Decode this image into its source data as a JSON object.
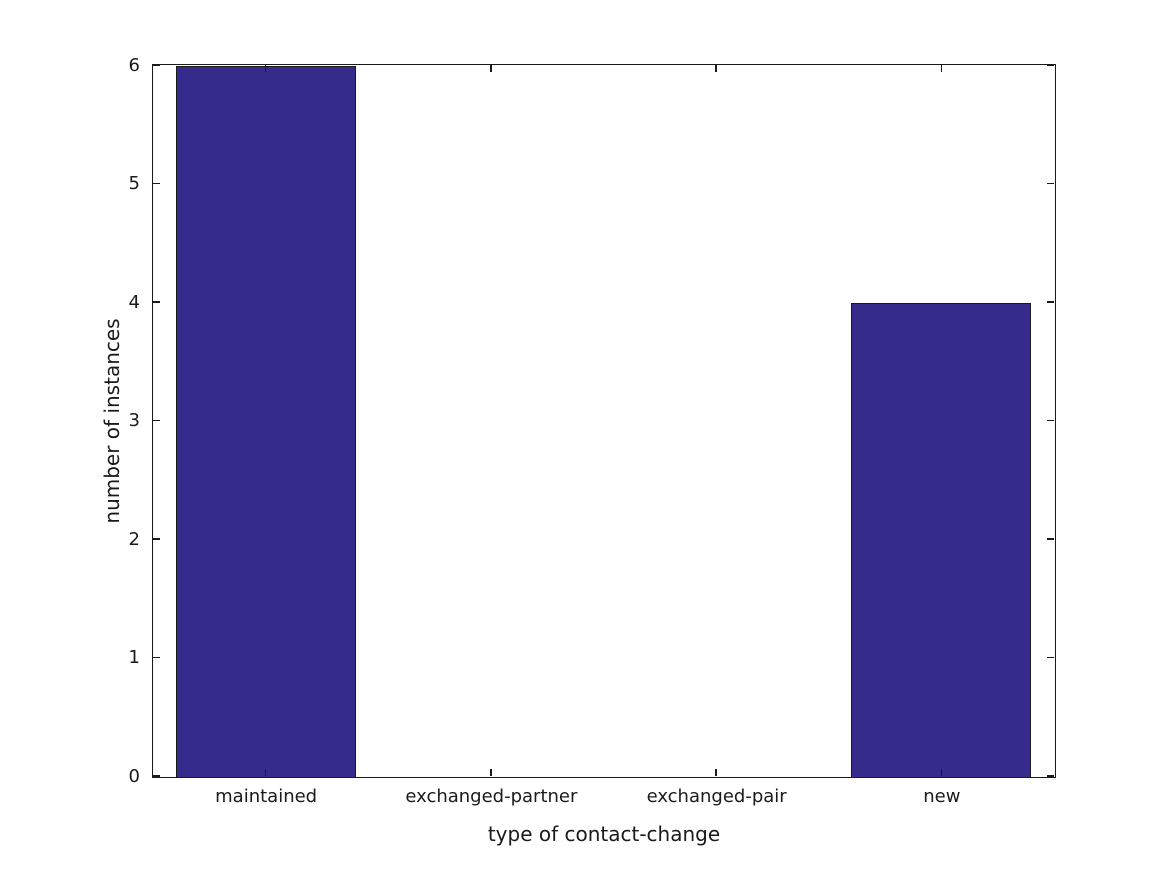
{
  "figure": {
    "background_color": "#ffffff",
    "text_color": "#1a1a1a",
    "axis_color": "#1a1a1a"
  },
  "chart_data": {
    "type": "bar",
    "title": "",
    "categories": [
      "maintained",
      "exchanged-partner",
      "exchanged-pair",
      "new"
    ],
    "values": [
      6,
      0,
      0,
      4
    ],
    "xlabel": "type of contact-change",
    "ylabel": "number of instances",
    "ylim": [
      0,
      6
    ],
    "yticks": [
      0,
      1,
      2,
      3,
      4,
      5,
      6
    ],
    "ytick_labels": [
      "0",
      "1",
      "2",
      "3",
      "4",
      "5",
      "6"
    ],
    "bar_color": "#342b8c",
    "bar_edge_color": "#1a1a1a",
    "bar_width_fraction": 0.8,
    "grid": false,
    "legend": null,
    "box": true,
    "tick_direction": "in",
    "ticks_mirrored": true
  }
}
